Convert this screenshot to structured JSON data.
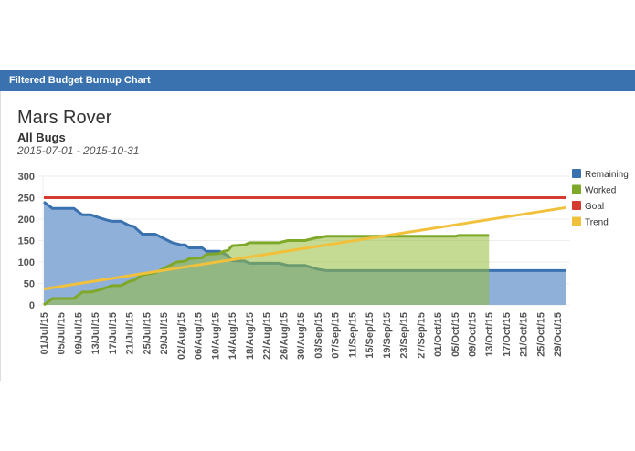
{
  "panel": {
    "header": "Filtered Budget Burnup Chart"
  },
  "chart_data": {
    "type": "area",
    "title": "Mars Rover",
    "subtitle": "All Bugs",
    "date_range": "2015-07-01 - 2015-10-31",
    "xlim": [
      "2015-07-01",
      "2015-10-31"
    ],
    "ylim": [
      0,
      300
    ],
    "yticks": [
      0,
      50,
      100,
      150,
      200,
      250,
      300
    ],
    "xtick_labels": [
      "01/Jul/15",
      "05/Jul/15",
      "09/Jul/15",
      "13/Jul/15",
      "17/Jul/15",
      "21/Jul/15",
      "25/Jul/15",
      "29/Jul/15",
      "02/Aug/15",
      "06/Aug/15",
      "10/Aug/15",
      "14/Aug/15",
      "18/Aug/15",
      "22/Aug/15",
      "26/Aug/15",
      "30/Aug/15",
      "03/Sep/15",
      "07/Sep/15",
      "11/Sep/15",
      "15/Sep/15",
      "19/Sep/15",
      "23/Sep/15",
      "27/Sep/15",
      "01/Oct/15",
      "05/Oct/15",
      "09/Oct/15",
      "13/Oct/15",
      "17/Oct/15",
      "21/Oct/15",
      "25/Oct/15",
      "29/Oct/15"
    ],
    "grid": true,
    "legend_position": "right",
    "series": [
      {
        "name": "Remaining",
        "color": "#3a72b0",
        "fill": "#8fb0d8",
        "points": [
          [
            "2015-07-01",
            240
          ],
          [
            "2015-07-03",
            225
          ],
          [
            "2015-07-08",
            225
          ],
          [
            "2015-07-10",
            210
          ],
          [
            "2015-07-12",
            210
          ],
          [
            "2015-07-14",
            203
          ],
          [
            "2015-07-16",
            197
          ],
          [
            "2015-07-17",
            195
          ],
          [
            "2015-07-19",
            195
          ],
          [
            "2015-07-21",
            185
          ],
          [
            "2015-07-22",
            183
          ],
          [
            "2015-07-24",
            165
          ],
          [
            "2015-07-27",
            165
          ],
          [
            "2015-07-28",
            160
          ],
          [
            "2015-07-29",
            155
          ],
          [
            "2015-07-31",
            145
          ],
          [
            "2015-08-02",
            140
          ],
          [
            "2015-08-03",
            140
          ],
          [
            "2015-08-04",
            133
          ],
          [
            "2015-08-07",
            133
          ],
          [
            "2015-08-08",
            125
          ],
          [
            "2015-08-11",
            125
          ],
          [
            "2015-08-12",
            120
          ],
          [
            "2015-08-13",
            115
          ],
          [
            "2015-08-14",
            103
          ],
          [
            "2015-08-17",
            102
          ],
          [
            "2015-08-18",
            97
          ],
          [
            "2015-08-25",
            97
          ],
          [
            "2015-08-27",
            92
          ],
          [
            "2015-08-31",
            92
          ],
          [
            "2015-09-03",
            83
          ],
          [
            "2015-09-05",
            80
          ],
          [
            "2015-10-05",
            80
          ],
          [
            "2015-10-31",
            80
          ]
        ]
      },
      {
        "name": "Worked",
        "color": "#7fa82a",
        "fill": "rgba(150,190,60,0.55)",
        "points": [
          [
            "2015-07-01",
            0
          ],
          [
            "2015-07-03",
            15
          ],
          [
            "2015-07-08",
            15
          ],
          [
            "2015-07-10",
            30
          ],
          [
            "2015-07-12",
            30
          ],
          [
            "2015-07-14",
            35
          ],
          [
            "2015-07-17",
            45
          ],
          [
            "2015-07-19",
            45
          ],
          [
            "2015-07-21",
            55
          ],
          [
            "2015-07-22",
            57
          ],
          [
            "2015-07-24",
            70
          ],
          [
            "2015-07-27",
            75
          ],
          [
            "2015-07-29",
            85
          ],
          [
            "2015-08-01",
            100
          ],
          [
            "2015-08-03",
            102
          ],
          [
            "2015-08-04",
            108
          ],
          [
            "2015-08-07",
            110
          ],
          [
            "2015-08-08",
            118
          ],
          [
            "2015-08-11",
            120
          ],
          [
            "2015-08-12",
            125
          ],
          [
            "2015-08-13",
            127
          ],
          [
            "2015-08-14",
            138
          ],
          [
            "2015-08-17",
            140
          ],
          [
            "2015-08-18",
            145
          ],
          [
            "2015-08-25",
            145
          ],
          [
            "2015-08-27",
            150
          ],
          [
            "2015-08-31",
            150
          ],
          [
            "2015-09-02",
            155
          ],
          [
            "2015-09-05",
            160
          ],
          [
            "2015-10-05",
            160
          ],
          [
            "2015-10-06",
            162
          ],
          [
            "2015-10-13",
            162
          ]
        ]
      },
      {
        "name": "Goal",
        "color": "#d63b2f",
        "points": [
          [
            "2015-07-01",
            250
          ],
          [
            "2015-10-31",
            250
          ]
        ]
      },
      {
        "name": "Trend",
        "color": "#f2c13c",
        "points": [
          [
            "2015-07-01",
            37
          ],
          [
            "2015-10-31",
            227
          ]
        ]
      }
    ]
  }
}
